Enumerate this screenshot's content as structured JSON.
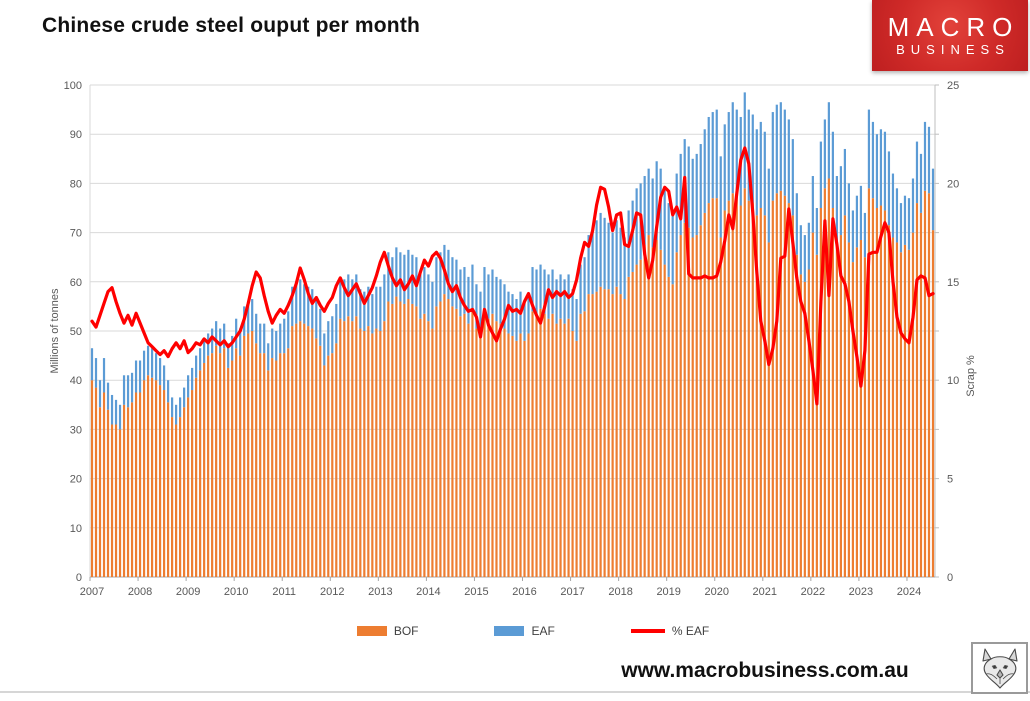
{
  "page": {
    "title": "Chinese crude steel ouput per month",
    "footer_url": "www.macrobusiness.com.au"
  },
  "logo": {
    "line1": "MACRO",
    "line2": "BUSINESS",
    "bg_color": "#cc2427",
    "text_color": "#ffffff"
  },
  "wolf_logo": {
    "name": "wolf-sketch"
  },
  "chart_data": {
    "type": "bar",
    "subtype": "stacked-bars-with-line",
    "title": "Chinese crude steel ouput per month",
    "frequency": "monthly",
    "x_start": "2007-01",
    "x_end": "2024-07",
    "year_labels": [
      "2007",
      "2008",
      "2009",
      "2010",
      "2011",
      "2012",
      "2013",
      "2014",
      "2015",
      "2016",
      "2017",
      "2018",
      "2019",
      "2020",
      "2021",
      "2022",
      "2023",
      "2024"
    ],
    "left_axis": {
      "title": "Millions of tonnes",
      "min": 0,
      "max": 100,
      "step": 10
    },
    "right_axis": {
      "title": "Scrap %",
      "min": 0,
      "max": 25,
      "step": 5,
      "minor_step": 2.5
    },
    "grid": true,
    "grid_color": "#d9d9d9",
    "axis_text_color": "#595959",
    "legend_position": "bottom",
    "legend": [
      {
        "label": "BOF",
        "color": "#ED7D31",
        "type": "bar"
      },
      {
        "label": "EAF",
        "color": "#5B9BD5",
        "type": "bar"
      },
      {
        "label": "% EAF",
        "color": "#FF0000",
        "type": "line"
      }
    ],
    "series": {
      "bof": [
        40,
        38.5,
        34.5,
        37.5,
        34,
        31,
        31,
        30,
        35,
        34.5,
        35.5,
        37.5,
        37.5,
        40,
        41,
        40.5,
        40,
        39,
        38,
        35.5,
        32.5,
        31,
        32.5,
        34.5,
        36.5,
        38,
        40.5,
        42,
        43.5,
        45,
        45.5,
        47,
        45.5,
        46.5,
        42.5,
        44,
        46.5,
        45,
        49,
        49.5,
        50,
        47.5,
        45.5,
        45.5,
        42,
        44.5,
        44,
        45.5,
        45.5,
        46.5,
        51,
        51.5,
        52,
        51.5,
        51,
        50.5,
        48.5,
        47,
        43,
        45,
        45.5,
        47.5,
        52.5,
        52,
        53,
        52,
        53,
        50.5,
        50,
        51,
        49.5,
        50.5,
        50,
        52,
        56,
        55.5,
        57,
        56,
        55.5,
        56.5,
        55.5,
        55,
        52.5,
        53.5,
        52,
        50.5,
        55,
        56,
        57.5,
        56.5,
        55,
        54.5,
        53,
        53.5,
        51.5,
        54,
        50.5,
        49.5,
        53.5,
        52.5,
        53.5,
        52,
        51.5,
        50.5,
        49.5,
        49,
        48,
        49.5,
        48,
        49.5,
        54,
        53.5,
        54.5,
        53.5,
        52.5,
        53.5,
        51.5,
        52.5,
        51.5,
        52.5,
        50,
        48,
        53.5,
        54,
        57.5,
        57.5,
        58,
        59,
        58.5,
        58.5,
        57.5,
        59,
        57.5,
        56.5,
        61,
        62,
        63.5,
        64.5,
        67.5,
        69.5,
        67,
        68.5,
        66.5,
        63.5,
        61,
        59.5,
        66,
        69.5,
        72,
        71,
        69,
        69.5,
        71.5,
        74,
        76,
        77,
        77,
        69,
        74.5,
        76.5,
        78,
        77,
        75.5,
        79,
        76.5,
        76,
        73.5,
        75,
        73.5,
        68,
        76.5,
        78,
        78.5,
        77.5,
        76,
        73.5,
        65.5,
        61.5,
        60,
        62.5,
        70,
        65.5,
        75,
        79,
        81,
        75,
        68,
        69.5,
        73.5,
        68,
        64,
        67,
        68.5,
        65,
        79,
        77,
        75,
        75.5,
        74.5,
        71.5,
        69,
        68,
        66,
        67.5,
        66.5,
        70,
        76,
        74,
        78.5,
        78,
        70.5
      ],
      "eaf": [
        6.5,
        6,
        5.5,
        7,
        5.5,
        6,
        5,
        5,
        6,
        6.5,
        6,
        6.5,
        6.5,
        6,
        6,
        6,
        5.5,
        5.5,
        5,
        4.5,
        4,
        4,
        4,
        4,
        4.5,
        4.5,
        4.5,
        4.5,
        4.5,
        4.5,
        5,
        5,
        5,
        5,
        5,
        5,
        6,
        5.5,
        6,
        6,
        6.5,
        6,
        6,
        6,
        5.5,
        6,
        6,
        6,
        7,
        7.5,
        8,
        8,
        8.5,
        8,
        8,
        8,
        8,
        7.5,
        6.5,
        7,
        7.5,
        8,
        8.5,
        8.5,
        8.5,
        8.5,
        8.5,
        8,
        8,
        8,
        8,
        8.5,
        9,
        9.5,
        10,
        9.5,
        10,
        10,
        10,
        10,
        10,
        10,
        9.5,
        9.5,
        9.5,
        9.5,
        10,
        10,
        10,
        10,
        10,
        10,
        9.5,
        9.5,
        9.5,
        9.5,
        9,
        8.5,
        9.5,
        9,
        9,
        9,
        9,
        9,
        8.5,
        8.5,
        8.5,
        8.5,
        8,
        8,
        9,
        9,
        9,
        9,
        9,
        9,
        9,
        9,
        9,
        9,
        8.5,
        8.5,
        10,
        11,
        12,
        13,
        14.5,
        15,
        14.5,
        13.5,
        12.5,
        13.5,
        13.5,
        12.5,
        13.5,
        14.5,
        15.5,
        15.5,
        14,
        13.5,
        14,
        16,
        16.5,
        15.5,
        15,
        14.5,
        16,
        16.5,
        17,
        16.5,
        16,
        16.5,
        16.5,
        17,
        17.5,
        17.5,
        18,
        16.5,
        17.5,
        18,
        18.5,
        18,
        18,
        19.5,
        18.5,
        18,
        17.5,
        17.5,
        17,
        15,
        18,
        18,
        18,
        17.5,
        17,
        15.5,
        12.5,
        10,
        9.5,
        9.5,
        11.5,
        9.5,
        13.5,
        14,
        15.5,
        15.5,
        13.5,
        14,
        13.5,
        12,
        10.5,
        10.5,
        11,
        9,
        16,
        15.5,
        15,
        15.5,
        16,
        15,
        13,
        11,
        10,
        10,
        10.5,
        11,
        12.5,
        12,
        14,
        13.5,
        12.5
      ],
      "eaf_pct": [
        13.0,
        12.7,
        13.3,
        13.9,
        14.5,
        14.7,
        14.0,
        13.4,
        12.9,
        13.3,
        12.8,
        13.4,
        12.9,
        12.4,
        11.9,
        11.7,
        11.5,
        11.3,
        11.5,
        11.2,
        11.6,
        11.9,
        11.6,
        12.0,
        11.4,
        11.6,
        11.9,
        11.8,
        12.1,
        11.9,
        12.2,
        12.0,
        11.8,
        12.0,
        11.7,
        11.9,
        12.2,
        12.5,
        13.1,
        13.9,
        14.8,
        15.5,
        15.2,
        14.3,
        13.5,
        12.9,
        13.3,
        13.6,
        13.4,
        13.8,
        14.3,
        14.9,
        15.7,
        15.1,
        14.4,
        13.9,
        14.2,
        13.8,
        13.5,
        13.9,
        14.2,
        14.8,
        15.2,
        14.7,
        14.3,
        14.6,
        14.9,
        14.4,
        13.9,
        14.3,
        14.7,
        15.3,
        16.0,
        16.5,
        15.8,
        15.2,
        14.8,
        15.1,
        14.6,
        14.9,
        15.3,
        14.8,
        15.5,
        16.1,
        15.8,
        16.3,
        16.5,
        16.2,
        15.6,
        14.9,
        14.5,
        14.8,
        14.2,
        13.8,
        13.5,
        13.6,
        13.2,
        12.2,
        13.6,
        12.8,
        12.4,
        12.0,
        12.6,
        13.1,
        13.8,
        13.5,
        13.6,
        13.4,
        14.0,
        14.4,
        13.8,
        13.3,
        12.9,
        13.7,
        14.6,
        14.2,
        14.5,
        14.3,
        14.5,
        14.2,
        14.4,
        15.1,
        16.2,
        17.0,
        16.8,
        17.6,
        18.9,
        19.8,
        19.7,
        18.8,
        17.6,
        18.4,
        18.5,
        16.9,
        16.8,
        17.6,
        18.5,
        18.4,
        16.4,
        15.2,
        16.1,
        17.8,
        19.3,
        19.8,
        19.6,
        18.4,
        18.8,
        18.2,
        20.3,
        15.4,
        15.2,
        15.2,
        15.2,
        15.3,
        15.2,
        15.2,
        15.3,
        16.0,
        17.1,
        18.4,
        17.7,
        19.5,
        21.2,
        21.8,
        21.0,
        18.5,
        15.5,
        13.0,
        12.0,
        10.8,
        11.6,
        13.0,
        16.2,
        16.3,
        18.7,
        17.0,
        15.2,
        14.0,
        13.4,
        12.0,
        10.5,
        8.8,
        14.0,
        18.1,
        14.3,
        18.2,
        16.9,
        15.3,
        14.9,
        14.0,
        12.5,
        11.2,
        9.7,
        11.5,
        16.4,
        16.5,
        16.5,
        17.3,
        18.0,
        17.5,
        15.0,
        13.2,
        12.4,
        12.1,
        11.9,
        13.2,
        15.1,
        15.3,
        15.2,
        14.3,
        14.4
      ]
    }
  }
}
